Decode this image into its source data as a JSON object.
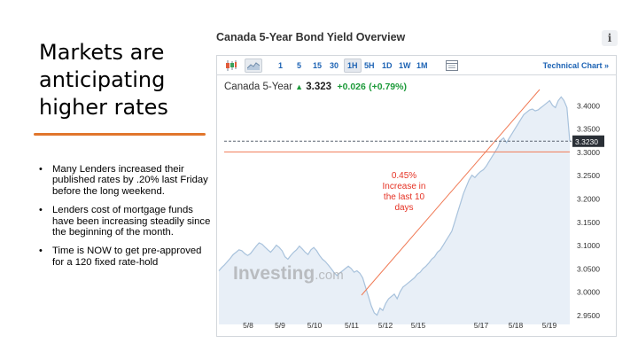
{
  "slide": {
    "title": "Markets are anticipating higher rates",
    "bullets": [
      "Many Lenders increased their published rates by .20% last Friday before the long weekend.",
      "Lenders cost of mortgage funds have been increasing steadily since the beginning of the month.",
      "Time is NOW to get pre-approved for a 120 fixed rate-hold"
    ]
  },
  "widget": {
    "title": "Canada 5-Year Bond Yield Overview",
    "info_label": "i",
    "periods": [
      "1",
      "5",
      "15",
      "30",
      "1H",
      "5H",
      "1D",
      "1W",
      "1M"
    ],
    "active_period": "1H",
    "technical_chart_label": "Technical Chart »",
    "quote": {
      "name": "Canada 5-Year",
      "price": "3.323",
      "change": "+0.026",
      "change_pct": "(+0.79%)"
    },
    "watermark": {
      "main": "Investing",
      "suffix": ".com"
    },
    "annotation": [
      "0.45%",
      "Increase in",
      "the last 10",
      "days"
    ],
    "colors": {
      "line": "#a8c2dc",
      "fill": "#e8eff7",
      "trend": "#f07a55",
      "positive": "#1d9a3a",
      "link": "#1d63b4",
      "annotation_text": "#e53224"
    }
  },
  "chart_data": {
    "type": "area",
    "y_ticks": [
      "3.4000",
      "3.3500",
      "3.3000",
      "3.2500",
      "3.2000",
      "3.1500",
      "3.1000",
      "3.0500",
      "3.0000",
      "2.9500"
    ],
    "x_ticks": [
      "5/8",
      "5/9",
      "5/10",
      "5/11",
      "5/12",
      "5/15",
      "5/17",
      "5/18",
      "5/19"
    ],
    "ylim": [
      2.93,
      3.43
    ],
    "current_label": "3.3230",
    "current_value": 3.323,
    "reference_level": 3.3,
    "series": [
      {
        "values": [
          3.045,
          3.052,
          3.058,
          3.065,
          3.072,
          3.08,
          3.085,
          3.09,
          3.088,
          3.082,
          3.078,
          3.082,
          3.09,
          3.098,
          3.105,
          3.102,
          3.096,
          3.09,
          3.085,
          3.092,
          3.1,
          3.095,
          3.088,
          3.075,
          3.07,
          3.078,
          3.085,
          3.09,
          3.098,
          3.092,
          3.085,
          3.08,
          3.09,
          3.095,
          3.088,
          3.078,
          3.07,
          3.065,
          3.058,
          3.05,
          3.042,
          3.035,
          3.04,
          3.045,
          3.05,
          3.055,
          3.05,
          3.042,
          3.045,
          3.04,
          3.03,
          3.01,
          2.99,
          2.97,
          2.955,
          2.95,
          2.965,
          2.96,
          2.975,
          2.985,
          2.99,
          2.995,
          2.985,
          3.0,
          3.01,
          3.015,
          3.02,
          3.025,
          3.03,
          3.038,
          3.042,
          3.05,
          3.055,
          3.062,
          3.07,
          3.075,
          3.085,
          3.09,
          3.1,
          3.11,
          3.12,
          3.13,
          3.15,
          3.17,
          3.19,
          3.21,
          3.225,
          3.24,
          3.25,
          3.245,
          3.252,
          3.258,
          3.262,
          3.27,
          3.28,
          3.29,
          3.3,
          3.31,
          3.325,
          3.33,
          3.32,
          3.33,
          3.34,
          3.35,
          3.36,
          3.37,
          3.38,
          3.385,
          3.39,
          3.392,
          3.388,
          3.39,
          3.395,
          3.4,
          3.405,
          3.41,
          3.4,
          3.395,
          3.41,
          3.418,
          3.41,
          3.395,
          3.323
        ]
      }
    ]
  }
}
